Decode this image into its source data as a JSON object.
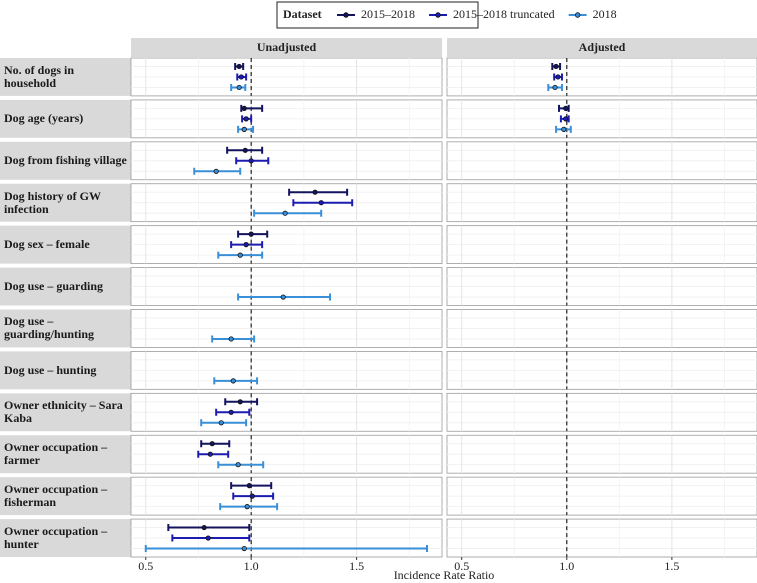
{
  "chart_data": {
    "type": "forest",
    "legend_title": "Dataset",
    "panels": [
      "Unadjusted",
      "Adjusted"
    ],
    "rows": [
      "No. of dogs in household",
      "Dog age (years)",
      "Dog from fishing village",
      "Dog history of GW infection",
      "Dog sex – female",
      "Dog use – guarding",
      "Dog use – guarding/hunting",
      "Dog use – hunting",
      "Owner ethnicity – Sara Kaba",
      "Owner occupation – farmer",
      "Owner occupation – fisherman",
      "Owner occupation – hunter"
    ],
    "xlabel": "Incidence Rate Ratio",
    "xlim": [
      0.43,
      1.905
    ],
    "xticks": [
      0.5,
      {
        "value": 1,
        "label": "1.0"
      },
      1.5
    ],
    "ref_line": 1,
    "series": [
      {
        "name": "2015–2018",
        "color": "#14145e",
        "panels": [
          {
            "values": [
              0.943,
              0.967,
              0.972,
              1.303,
              1.0,
              null,
              null,
              null,
              0.948,
              0.815,
              0.991,
              0.777
            ],
            "lower": [
              0.924,
              0.953,
              0.886,
              1.18,
              0.938,
              null,
              null,
              null,
              0.877,
              0.763,
              0.905,
              0.607
            ],
            "upper": [
              0.962,
              1.052,
              1.052,
              1.455,
              1.076,
              null,
              null,
              null,
              1.028,
              0.896,
              1.095,
              0.991
            ]
          },
          {
            "values": [
              0.949,
              0.995,
              null,
              null,
              null,
              null,
              null,
              null,
              null,
              null,
              null,
              null
            ],
            "lower": [
              0.931,
              0.963,
              null,
              null,
              null,
              null,
              null,
              null,
              null,
              null,
              null,
              null
            ],
            "upper": [
              0.968,
              1.009,
              null,
              null,
              null,
              null,
              null,
              null,
              null,
              null,
              null,
              null
            ]
          }
        ]
      },
      {
        "name": "2015–2018 truncated",
        "color": "#1c1cb0",
        "panels": [
          {
            "values": [
              0.953,
              0.976,
              1.0,
              1.332,
              0.976,
              null,
              null,
              null,
              0.905,
              0.806,
              1.005,
              0.796
            ],
            "lower": [
              0.934,
              0.957,
              0.929,
              1.2,
              0.905,
              null,
              null,
              null,
              0.834,
              0.749,
              0.915,
              0.626
            ],
            "upper": [
              0.976,
              1.0,
              1.081,
              1.479,
              1.052,
              null,
              null,
              null,
              0.991,
              0.891,
              1.104,
              0.991
            ]
          },
          {
            "values": [
              0.958,
              0.995,
              null,
              null,
              null,
              null,
              null,
              null,
              null,
              null,
              null,
              null
            ],
            "lower": [
              0.94,
              0.972,
              null,
              null,
              null,
              null,
              null,
              null,
              null,
              null,
              null,
              null
            ],
            "upper": [
              0.977,
              1.009,
              null,
              null,
              null,
              null,
              null,
              null,
              null,
              null,
              null,
              null
            ]
          }
        ]
      },
      {
        "name": "2018",
        "color": "#3a8fd9",
        "panels": [
          {
            "values": [
              0.943,
              0.967,
              0.834,
              1.161,
              0.948,
              1.152,
              0.905,
              0.915,
              0.858,
              0.938,
              0.981,
              0.967
            ],
            "lower": [
              0.905,
              0.938,
              0.73,
              1.014,
              0.844,
              0.938,
              0.815,
              0.825,
              0.763,
              0.844,
              0.853,
              0.5
            ],
            "upper": [
              0.972,
              1.009,
              0.948,
              1.332,
              1.052,
              1.374,
              1.014,
              1.028,
              0.976,
              1.057,
              1.123,
              1.834
            ]
          },
          {
            "values": [
              0.944,
              0.986,
              null,
              null,
              null,
              null,
              null,
              null,
              null,
              null,
              null,
              null
            ],
            "lower": [
              0.912,
              0.949,
              null,
              null,
              null,
              null,
              null,
              null,
              null,
              null,
              null,
              null
            ],
            "upper": [
              0.977,
              1.019,
              null,
              null,
              null,
              null,
              null,
              null,
              null,
              null,
              null,
              null
            ]
          }
        ]
      }
    ]
  }
}
